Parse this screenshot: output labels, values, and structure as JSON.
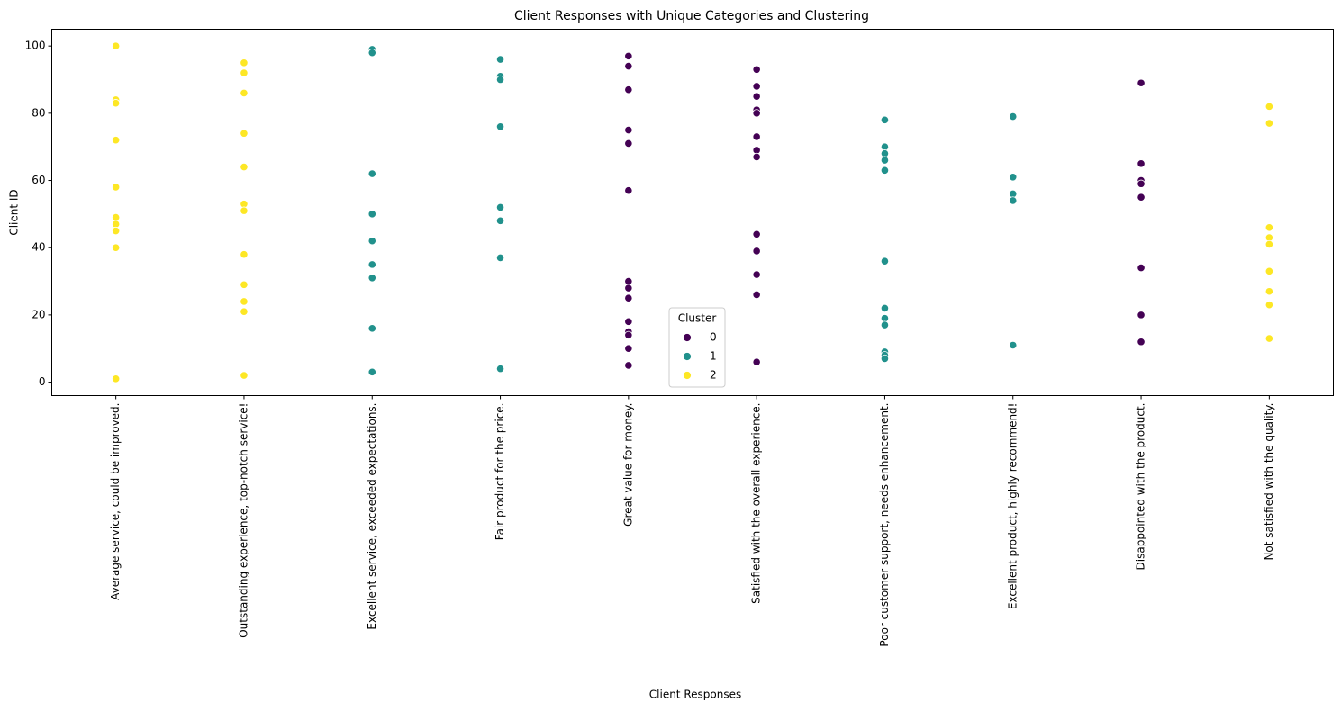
{
  "chart_data": {
    "type": "scatter",
    "title": "Client Responses with Unique Categories and Clustering",
    "x_label": "Client Responses",
    "y_label": "Client ID",
    "categories": [
      "Average service, could be improved.",
      "Outstanding experience, top-notch service!",
      "Excellent service, exceeded expectations.",
      "Fair product for the price.",
      "Great value for money.",
      "Satisfied with the overall experience.",
      "Poor customer support, needs enhancement.",
      "Excellent product, highly recommend!",
      "Disappointed with the product.",
      "Not satisfied with the quality."
    ],
    "ylim": [
      -4,
      105
    ],
    "yticks": [
      0,
      20,
      40,
      60,
      80,
      100
    ],
    "legend_title": "Cluster",
    "legend_loc": "lower center",
    "series": [
      {
        "name": "0",
        "color": "#440154",
        "x": [
          "Great value for money.",
          "Great value for money.",
          "Great value for money.",
          "Great value for money.",
          "Great value for money.",
          "Great value for money.",
          "Great value for money.",
          "Great value for money.",
          "Great value for money.",
          "Great value for money.",
          "Great value for money.",
          "Great value for money.",
          "Great value for money.",
          "Great value for money.",
          "Satisfied with the overall experience.",
          "Satisfied with the overall experience.",
          "Satisfied with the overall experience.",
          "Satisfied with the overall experience.",
          "Satisfied with the overall experience.",
          "Satisfied with the overall experience.",
          "Satisfied with the overall experience.",
          "Satisfied with the overall experience.",
          "Satisfied with the overall experience.",
          "Satisfied with the overall experience.",
          "Satisfied with the overall experience.",
          "Satisfied with the overall experience.",
          "Satisfied with the overall experience.",
          "Disappointed with the product.",
          "Disappointed with the product.",
          "Disappointed with the product.",
          "Disappointed with the product.",
          "Disappointed with the product.",
          "Disappointed with the product.",
          "Disappointed with the product.",
          "Disappointed with the product."
        ],
        "values": [
          97,
          94,
          87,
          75,
          71,
          57,
          30,
          28,
          25,
          18,
          15,
          14,
          10,
          5,
          93,
          88,
          85,
          81,
          80,
          73,
          69,
          67,
          44,
          39,
          32,
          26,
          6,
          89,
          65,
          60,
          59,
          55,
          34,
          20,
          12
        ]
      },
      {
        "name": "1",
        "color": "#21918c",
        "x": [
          "Excellent service, exceeded expectations.",
          "Excellent service, exceeded expectations.",
          "Excellent service, exceeded expectations.",
          "Excellent service, exceeded expectations.",
          "Excellent service, exceeded expectations.",
          "Excellent service, exceeded expectations.",
          "Excellent service, exceeded expectations.",
          "Excellent service, exceeded expectations.",
          "Excellent service, exceeded expectations.",
          "Fair product for the price.",
          "Fair product for the price.",
          "Fair product for the price.",
          "Fair product for the price.",
          "Fair product for the price.",
          "Fair product for the price.",
          "Fair product for the price.",
          "Fair product for the price.",
          "Poor customer support, needs enhancement.",
          "Poor customer support, needs enhancement.",
          "Poor customer support, needs enhancement.",
          "Poor customer support, needs enhancement.",
          "Poor customer support, needs enhancement.",
          "Poor customer support, needs enhancement.",
          "Poor customer support, needs enhancement.",
          "Poor customer support, needs enhancement.",
          "Poor customer support, needs enhancement.",
          "Poor customer support, needs enhancement.",
          "Poor customer support, needs enhancement.",
          "Poor customer support, needs enhancement.",
          "Excellent product, highly recommend!",
          "Excellent product, highly recommend!",
          "Excellent product, highly recommend!",
          "Excellent product, highly recommend!",
          "Excellent product, highly recommend!"
        ],
        "values": [
          99,
          98,
          62,
          50,
          42,
          35,
          31,
          16,
          3,
          96,
          91,
          90,
          76,
          52,
          48,
          37,
          4,
          78,
          70,
          68,
          66,
          63,
          36,
          22,
          19,
          17,
          9,
          8,
          7,
          79,
          61,
          56,
          54,
          11
        ]
      },
      {
        "name": "2",
        "color": "#fde725",
        "x": [
          "Average service, could be improved.",
          "Average service, could be improved.",
          "Average service, could be improved.",
          "Average service, could be improved.",
          "Average service, could be improved.",
          "Average service, could be improved.",
          "Average service, could be improved.",
          "Average service, could be improved.",
          "Average service, could be improved.",
          "Average service, could be improved.",
          "Outstanding experience, top-notch service!",
          "Outstanding experience, top-notch service!",
          "Outstanding experience, top-notch service!",
          "Outstanding experience, top-notch service!",
          "Outstanding experience, top-notch service!",
          "Outstanding experience, top-notch service!",
          "Outstanding experience, top-notch service!",
          "Outstanding experience, top-notch service!",
          "Outstanding experience, top-notch service!",
          "Outstanding experience, top-notch service!",
          "Outstanding experience, top-notch service!",
          "Outstanding experience, top-notch service!",
          "Not satisfied with the quality.",
          "Not satisfied with the quality.",
          "Not satisfied with the quality.",
          "Not satisfied with the quality.",
          "Not satisfied with the quality.",
          "Not satisfied with the quality.",
          "Not satisfied with the quality.",
          "Not satisfied with the quality.",
          "Not satisfied with the quality."
        ],
        "values": [
          100,
          84,
          83,
          72,
          58,
          49,
          47,
          45,
          40,
          1,
          95,
          92,
          86,
          74,
          64,
          53,
          51,
          38,
          29,
          24,
          21,
          2,
          82,
          77,
          46,
          43,
          41,
          33,
          27,
          23,
          13
        ]
      }
    ]
  }
}
